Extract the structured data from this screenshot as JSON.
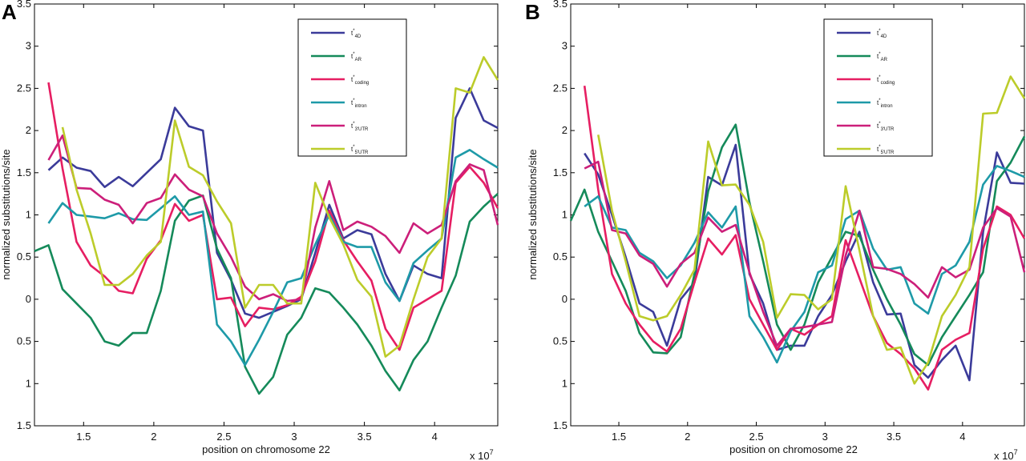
{
  "colors": {
    "t4D": "#3b3b9a",
    "tAR": "#158a5a",
    "tcoding": "#e61e62",
    "tintron": "#1e9aa8",
    "t3UTR": "#cc1f7a",
    "t5UTR": "#bccc2a"
  },
  "chart_data": [
    {
      "type": "line",
      "panel": "A",
      "xlabel": "position on chromosome 22",
      "ylabel": "normalized substitutions/site",
      "x_multiplier_label": "x 10",
      "x_multiplier_exp": "7",
      "xlim": [
        1.15,
        4.45
      ],
      "ylim": [
        -1.5,
        3.5
      ],
      "xticks": [
        1.5,
        2,
        2.5,
        3,
        3.5,
        4
      ],
      "xtick_labels": [
        "1.5",
        "2",
        "2.5",
        "3",
        "3.5",
        "4"
      ],
      "yticks": [
        -1.5,
        -1,
        -0.5,
        0,
        0.5,
        1,
        1.5,
        2,
        2.5,
        3,
        3.5
      ],
      "ytick_labels": [
        "1.5",
        "1",
        "0.5",
        "0",
        "0.5",
        "1",
        "1.5",
        "2",
        "2.5",
        "3",
        "3.5"
      ],
      "grid": false,
      "legend_position": "top-right",
      "series": [
        {
          "name": "t*4D",
          "label_main": "t",
          "label_sub": "4D",
          "color": "#3b3b9a",
          "x": [
            1.25,
            1.35,
            1.45,
            1.55,
            1.65,
            1.75,
            1.85,
            1.95,
            2.05,
            2.15,
            2.25,
            2.35,
            2.45,
            2.55,
            2.65,
            2.75,
            2.85,
            2.95,
            3.05,
            3.15,
            3.25,
            3.35,
            3.45,
            3.55,
            3.65,
            3.75,
            3.85,
            3.95,
            4.05,
            4.15,
            4.25,
            4.35,
            4.45
          ],
          "y": [
            1.53,
            1.68,
            1.56,
            1.52,
            1.33,
            1.45,
            1.34,
            1.5,
            1.66,
            2.27,
            2.05,
            2.0,
            0.55,
            0.23,
            -0.17,
            -0.22,
            -0.15,
            -0.08,
            0.0,
            0.55,
            1.12,
            0.72,
            0.82,
            0.77,
            0.3,
            -0.02,
            0.4,
            0.3,
            0.25,
            2.15,
            2.5,
            2.12,
            2.03
          ]
        },
        {
          "name": "t*AR",
          "label_main": "t",
          "label_sub": "AR",
          "color": "#158a5a",
          "x": [
            1.15,
            1.25,
            1.35,
            1.45,
            1.55,
            1.65,
            1.75,
            1.85,
            1.95,
            2.05,
            2.15,
            2.25,
            2.35,
            2.45,
            2.55,
            2.65,
            2.75,
            2.85,
            2.95,
            3.05,
            3.15,
            3.25,
            3.35,
            3.45,
            3.55,
            3.65,
            3.75,
            3.85,
            3.95,
            4.05,
            4.15,
            4.25,
            4.35,
            4.45
          ],
          "y": [
            0.57,
            0.64,
            0.12,
            -0.05,
            -0.22,
            -0.5,
            -0.55,
            -0.4,
            -0.4,
            0.1,
            0.93,
            1.17,
            1.23,
            0.6,
            0.25,
            -0.8,
            -1.12,
            -0.92,
            -0.42,
            -0.22,
            0.13,
            0.08,
            -0.1,
            -0.3,
            -0.55,
            -0.85,
            -1.08,
            -0.72,
            -0.5,
            -0.1,
            0.28,
            0.92,
            1.1,
            1.25
          ]
        },
        {
          "name": "t*coding",
          "label_main": "t",
          "label_sub": "coding",
          "color": "#e61e62",
          "x": [
            1.25,
            1.35,
            1.45,
            1.55,
            1.65,
            1.75,
            1.85,
            1.95,
            2.05,
            2.15,
            2.25,
            2.35,
            2.45,
            2.55,
            2.65,
            2.75,
            2.85,
            2.95,
            3.05,
            3.15,
            3.25,
            3.35,
            3.45,
            3.55,
            3.65,
            3.75,
            3.85,
            3.95,
            4.05,
            4.15,
            4.25,
            4.35,
            4.45
          ],
          "y": [
            2.57,
            1.55,
            0.68,
            0.4,
            0.27,
            0.1,
            0.07,
            0.48,
            0.7,
            1.13,
            0.93,
            1.0,
            0.0,
            0.02,
            -0.32,
            -0.1,
            -0.12,
            -0.07,
            0.03,
            0.45,
            1.05,
            0.7,
            0.45,
            0.22,
            -0.35,
            -0.6,
            -0.1,
            0.0,
            0.1,
            1.38,
            1.57,
            1.38,
            1.08
          ]
        },
        {
          "name": "t*intron",
          "label_main": "t",
          "label_sub": "intron",
          "color": "#1e9aa8",
          "x": [
            1.25,
            1.35,
            1.45,
            1.55,
            1.65,
            1.75,
            1.85,
            1.95,
            2.05,
            2.15,
            2.25,
            2.35,
            2.45,
            2.55,
            2.65,
            2.75,
            2.85,
            2.95,
            3.05,
            3.15,
            3.25,
            3.35,
            3.45,
            3.55,
            3.65,
            3.75,
            3.85,
            3.95,
            4.05,
            4.15,
            4.25,
            4.35,
            4.45
          ],
          "y": [
            0.9,
            1.14,
            1.0,
            0.98,
            0.96,
            1.02,
            0.95,
            0.94,
            1.08,
            1.22,
            1.0,
            1.04,
            -0.3,
            -0.5,
            -0.78,
            -0.48,
            -0.15,
            0.2,
            0.25,
            0.65,
            1.0,
            0.68,
            0.62,
            0.62,
            0.2,
            -0.02,
            0.43,
            0.58,
            0.72,
            1.68,
            1.77,
            1.66,
            1.56
          ]
        },
        {
          "name": "t*3'UTR",
          "label_main": "t",
          "label_sub": "3'UTR",
          "color": "#cc1f7a",
          "x": [
            1.25,
            1.35,
            1.45,
            1.55,
            1.65,
            1.75,
            1.85,
            1.95,
            2.05,
            2.15,
            2.25,
            2.35,
            2.45,
            2.55,
            2.65,
            2.75,
            2.85,
            2.95,
            3.05,
            3.15,
            3.25,
            3.35,
            3.45,
            3.55,
            3.65,
            3.75,
            3.85,
            3.95,
            4.05,
            4.15,
            4.25,
            4.35,
            4.45
          ],
          "y": [
            1.65,
            1.94,
            1.32,
            1.31,
            1.18,
            1.12,
            0.9,
            1.14,
            1.2,
            1.48,
            1.3,
            1.22,
            0.78,
            0.5,
            0.15,
            0.0,
            0.06,
            -0.02,
            0.0,
            0.85,
            1.4,
            0.82,
            0.92,
            0.86,
            0.75,
            0.55,
            0.9,
            0.78,
            0.88,
            1.4,
            1.6,
            1.53,
            0.88
          ]
        },
        {
          "name": "t*5'UTR",
          "label_main": "t",
          "label_sub": "5'UTR",
          "color": "#bccc2a",
          "x": [
            1.35,
            1.45,
            1.55,
            1.65,
            1.75,
            1.85,
            1.95,
            2.05,
            2.15,
            2.25,
            2.35,
            2.45,
            2.55,
            2.65,
            2.75,
            2.85,
            2.95,
            3.05,
            3.15,
            3.25,
            3.35,
            3.45,
            3.55,
            3.65,
            3.75,
            3.85,
            3.95,
            4.05,
            4.15,
            4.25,
            4.35,
            4.45
          ],
          "y": [
            2.04,
            1.3,
            0.78,
            0.17,
            0.17,
            0.3,
            0.52,
            0.68,
            2.12,
            1.57,
            1.47,
            1.16,
            0.9,
            -0.1,
            0.17,
            0.17,
            -0.05,
            -0.05,
            1.38,
            0.97,
            0.65,
            0.23,
            0.03,
            -0.68,
            -0.55,
            0.0,
            0.5,
            0.72,
            2.5,
            2.45,
            2.87,
            2.6
          ]
        }
      ]
    },
    {
      "type": "line",
      "panel": "B",
      "xlabel": "position on chromosome 22",
      "ylabel": "normalized substitutions/site",
      "x_multiplier_label": "x 10",
      "x_multiplier_exp": "7",
      "xlim": [
        1.15,
        4.45
      ],
      "ylim": [
        -1.5,
        3.5
      ],
      "xticks": [
        1.5,
        2,
        2.5,
        3,
        3.5,
        4
      ],
      "xtick_labels": [
        "1.5",
        "2",
        "2.5",
        "3",
        "3.5",
        "4"
      ],
      "yticks": [
        -1.5,
        -1,
        -0.5,
        0,
        0.5,
        1,
        1.5,
        2,
        2.5,
        3,
        3.5
      ],
      "ytick_labels": [
        "1.5",
        "1",
        "0.5",
        "0",
        "0.5",
        "1",
        "1.5",
        "2",
        "2.5",
        "3",
        "3.5"
      ],
      "grid": false,
      "legend_position": "top-right",
      "series": [
        {
          "name": "t*4D",
          "label_main": "t",
          "label_sub": "4D",
          "color": "#3b3b9a",
          "x": [
            1.25,
            1.35,
            1.45,
            1.55,
            1.65,
            1.75,
            1.85,
            1.95,
            2.05,
            2.15,
            2.25,
            2.35,
            2.45,
            2.55,
            2.65,
            2.75,
            2.85,
            2.95,
            3.05,
            3.15,
            3.25,
            3.35,
            3.45,
            3.55,
            3.65,
            3.75,
            3.85,
            3.95,
            4.05,
            4.15,
            4.25,
            4.35,
            4.45
          ],
          "y": [
            1.73,
            1.48,
            1.0,
            0.5,
            -0.05,
            -0.15,
            -0.55,
            0.0,
            0.2,
            1.45,
            1.35,
            1.83,
            0.3,
            -0.05,
            -0.6,
            -0.55,
            -0.55,
            -0.2,
            0.05,
            0.45,
            0.8,
            0.2,
            -0.18,
            -0.17,
            -0.78,
            -0.93,
            -0.72,
            -0.55,
            -0.96,
            0.8,
            1.74,
            1.38,
            1.37
          ]
        },
        {
          "name": "t*AR",
          "label_main": "t",
          "label_sub": "AR",
          "color": "#158a5a",
          "x": [
            1.15,
            1.25,
            1.35,
            1.45,
            1.55,
            1.65,
            1.75,
            1.85,
            1.95,
            2.05,
            2.15,
            2.25,
            2.35,
            2.45,
            2.55,
            2.65,
            2.75,
            2.85,
            2.95,
            3.05,
            3.15,
            3.25,
            3.35,
            3.45,
            3.55,
            3.65,
            3.75,
            3.85,
            3.95,
            4.05,
            4.15,
            4.25,
            4.35,
            4.45
          ],
          "y": [
            0.93,
            1.3,
            0.8,
            0.45,
            0.1,
            -0.4,
            -0.63,
            -0.64,
            -0.45,
            0.3,
            1.28,
            1.8,
            2.07,
            1.15,
            0.45,
            -0.3,
            -0.6,
            -0.3,
            0.2,
            0.5,
            0.8,
            0.75,
            0.35,
            0.0,
            -0.3,
            -0.65,
            -0.78,
            -0.45,
            -0.2,
            0.05,
            0.32,
            1.4,
            1.62,
            1.93
          ]
        },
        {
          "name": "t*coding",
          "label_main": "t",
          "label_sub": "coding",
          "color": "#e61e62",
          "x": [
            1.25,
            1.35,
            1.45,
            1.55,
            1.65,
            1.75,
            1.85,
            1.95,
            2.05,
            2.15,
            2.25,
            2.35,
            2.45,
            2.55,
            2.65,
            2.75,
            2.85,
            2.95,
            3.05,
            3.15,
            3.25,
            3.35,
            3.45,
            3.55,
            3.65,
            3.75,
            3.85,
            3.95,
            4.05,
            4.15,
            4.25,
            4.35,
            4.45
          ],
          "y": [
            2.53,
            1.3,
            0.3,
            -0.05,
            -0.3,
            -0.5,
            -0.62,
            -0.35,
            0.2,
            0.72,
            0.53,
            0.76,
            0.0,
            -0.3,
            -0.6,
            -0.35,
            -0.42,
            -0.3,
            -0.2,
            0.7,
            0.25,
            -0.2,
            -0.52,
            -0.65,
            -0.82,
            -1.07,
            -0.6,
            -0.48,
            -0.4,
            0.6,
            1.1,
            1.0,
            0.72
          ]
        },
        {
          "name": "t*intron",
          "label_main": "t",
          "label_sub": "intron",
          "color": "#1e9aa8",
          "x": [
            1.25,
            1.35,
            1.45,
            1.55,
            1.65,
            1.75,
            1.85,
            1.95,
            2.05,
            2.15,
            2.25,
            2.35,
            2.45,
            2.55,
            2.65,
            2.75,
            2.85,
            2.95,
            3.05,
            3.15,
            3.25,
            3.35,
            3.45,
            3.55,
            3.65,
            3.75,
            3.85,
            3.95,
            4.05,
            4.15,
            4.25,
            4.35,
            4.45
          ],
          "y": [
            1.1,
            1.22,
            0.85,
            0.82,
            0.55,
            0.45,
            0.25,
            0.4,
            0.67,
            1.03,
            0.85,
            1.1,
            -0.2,
            -0.45,
            -0.75,
            -0.38,
            -0.15,
            0.32,
            0.4,
            0.95,
            1.05,
            0.6,
            0.35,
            0.38,
            -0.05,
            -0.17,
            0.3,
            0.4,
            0.68,
            1.36,
            1.58,
            1.52,
            1.45
          ]
        },
        {
          "name": "t*3'UTR",
          "label_main": "t",
          "label_sub": "3'UTR",
          "color": "#cc1f7a",
          "x": [
            1.25,
            1.35,
            1.45,
            1.55,
            1.65,
            1.75,
            1.85,
            1.95,
            2.05,
            2.15,
            2.25,
            2.35,
            2.45,
            2.55,
            2.65,
            2.75,
            2.85,
            2.95,
            3.05,
            3.15,
            3.25,
            3.35,
            3.45,
            3.55,
            3.65,
            3.75,
            3.85,
            3.95,
            4.05,
            4.15,
            4.25,
            4.35,
            4.45
          ],
          "y": [
            1.55,
            1.63,
            0.82,
            0.78,
            0.52,
            0.42,
            0.15,
            0.42,
            0.55,
            0.97,
            0.8,
            0.88,
            0.32,
            -0.15,
            -0.55,
            -0.35,
            -0.33,
            -0.3,
            -0.27,
            0.52,
            1.05,
            0.38,
            0.36,
            0.3,
            0.18,
            0.02,
            0.38,
            0.26,
            0.35,
            0.85,
            1.08,
            0.98,
            0.32
          ]
        },
        {
          "name": "t*5'UTR",
          "label_main": "t",
          "label_sub": "5'UTR",
          "color": "#bccc2a",
          "x": [
            1.35,
            1.45,
            1.55,
            1.65,
            1.75,
            1.85,
            1.95,
            2.05,
            2.15,
            2.25,
            2.35,
            2.45,
            2.55,
            2.65,
            2.75,
            2.85,
            2.95,
            3.05,
            3.15,
            3.25,
            3.35,
            3.45,
            3.55,
            3.65,
            3.75,
            3.85,
            3.95,
            4.05,
            4.15,
            4.25,
            4.35,
            4.45
          ],
          "y": [
            1.95,
            1.05,
            0.45,
            -0.2,
            -0.25,
            -0.2,
            0.05,
            0.35,
            1.87,
            1.35,
            1.36,
            1.12,
            0.68,
            -0.22,
            0.06,
            0.05,
            -0.12,
            0.0,
            1.34,
            0.58,
            -0.2,
            -0.6,
            -0.57,
            -1.0,
            -0.75,
            -0.2,
            0.05,
            0.38,
            2.2,
            2.21,
            2.64,
            2.38
          ]
        }
      ]
    }
  ]
}
